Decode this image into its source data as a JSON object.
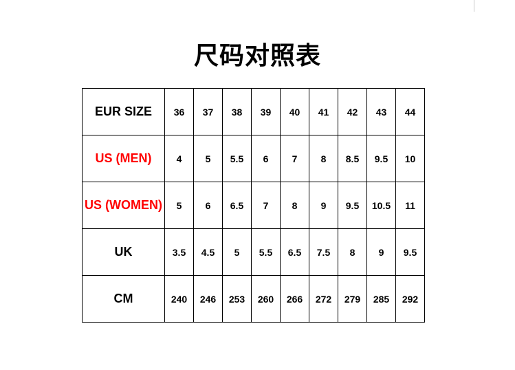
{
  "title": "尺码对照表",
  "colors": {
    "label_default": "#000000",
    "label_highlight": "#ff0000"
  },
  "rows": [
    {
      "label": "EUR SIZE",
      "highlight": false,
      "values": [
        "36",
        "37",
        "38",
        "39",
        "40",
        "41",
        "42",
        "43",
        "44"
      ]
    },
    {
      "label": "US (MEN)",
      "highlight": true,
      "values": [
        "4",
        "5",
        "5.5",
        "6",
        "7",
        "8",
        "8.5",
        "9.5",
        "10"
      ]
    },
    {
      "label": "US (WOMEN)",
      "highlight": true,
      "values": [
        "5",
        "6",
        "6.5",
        "7",
        "8",
        "9",
        "9.5",
        "10.5",
        "11"
      ]
    },
    {
      "label": "UK",
      "highlight": false,
      "values": [
        "3.5",
        "4.5",
        "5",
        "5.5",
        "6.5",
        "7.5",
        "8",
        "9",
        "9.5"
      ]
    },
    {
      "label": "CM",
      "highlight": false,
      "values": [
        "240",
        "246",
        "253",
        "260",
        "266",
        "272",
        "279",
        "285",
        "292"
      ]
    }
  ]
}
